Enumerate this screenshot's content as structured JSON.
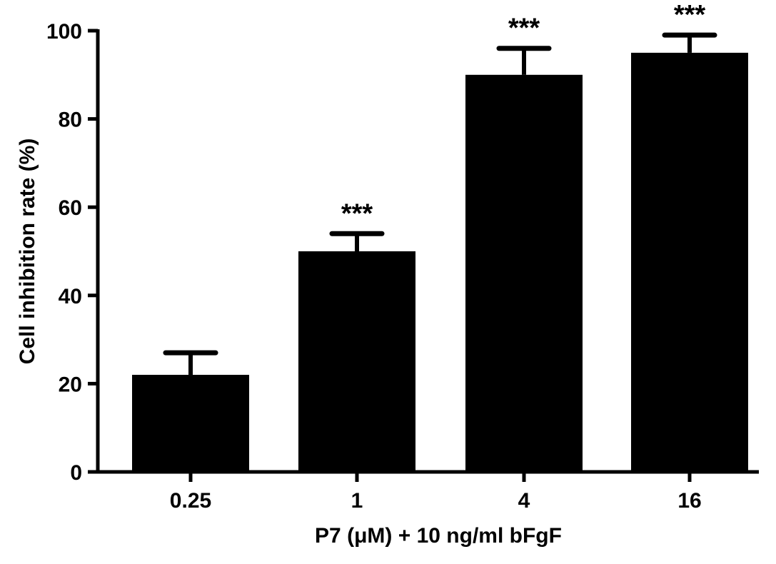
{
  "chart_data": {
    "type": "bar",
    "title": "",
    "xlabel": "P7 (μM) + 10 ng/ml bFgF",
    "ylabel": "Cell inhibition rate (%)",
    "categories": [
      "0.25",
      "1",
      "4",
      "16"
    ],
    "values": [
      22,
      50,
      90,
      95
    ],
    "error_upper": [
      27,
      54,
      96,
      99
    ],
    "annotations": [
      "",
      "***",
      "***",
      "***"
    ],
    "ylim": [
      0,
      100
    ],
    "yticks": [
      "0",
      "20",
      "40",
      "60",
      "80",
      "100"
    ],
    "grid": false,
    "bar_color": "#000000"
  }
}
